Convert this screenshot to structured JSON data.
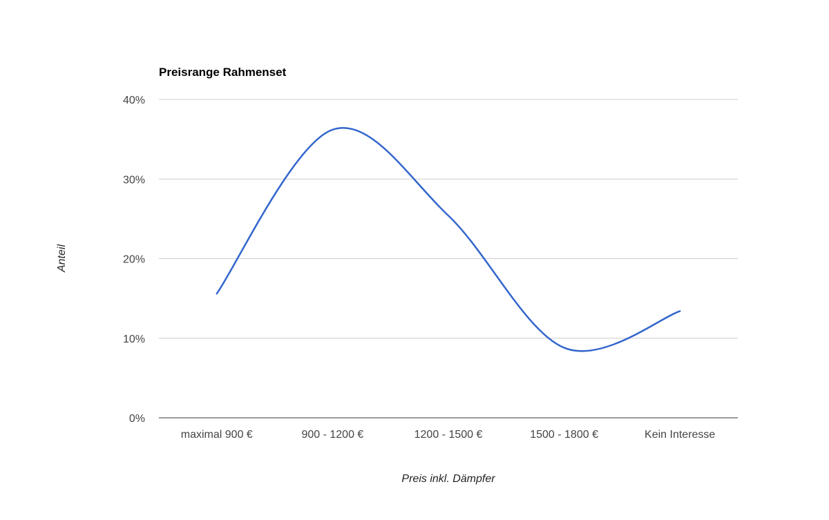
{
  "chart_data": {
    "type": "line",
    "title": "Preisrange Rahmenset",
    "xlabel": "Preis inkl. Dämpfer",
    "ylabel": "Anteil",
    "categories": [
      "maximal 900 €",
      "900 - 1200 €",
      "1200 - 1500 €",
      "1500 - 1800 €",
      "Kein Interesse"
    ],
    "series": [
      {
        "values": [
          15.6,
          36.2,
          25.4,
          8.8,
          13.4
        ],
        "color": "#3366cc"
      }
    ],
    "ylim": [
      0,
      40
    ],
    "yticks": [
      {
        "value": 0,
        "label": "0%"
      },
      {
        "value": 10,
        "label": "10%"
      },
      {
        "value": 20,
        "label": "20%"
      },
      {
        "value": 30,
        "label": "30%"
      },
      {
        "value": 40,
        "label": "40%"
      }
    ],
    "smooth": true,
    "grid": true,
    "legend": "none"
  }
}
